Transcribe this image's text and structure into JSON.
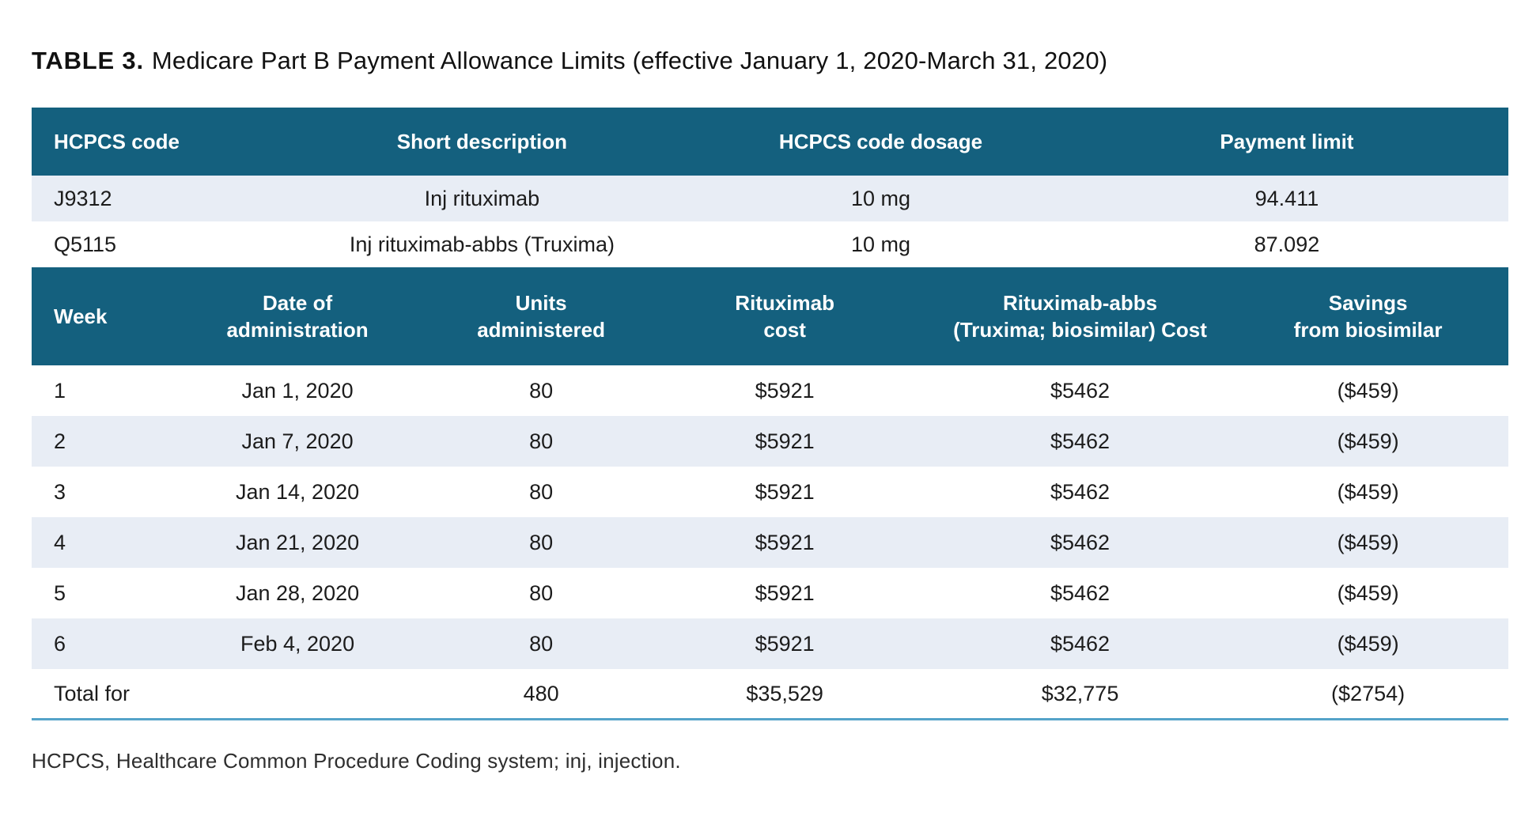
{
  "title": {
    "label": "TABLE 3.",
    "text": "Medicare Part B Payment Allowance Limits (effective January 1, 2020-March 31, 2020)"
  },
  "colors": {
    "header_bg": "#14607e",
    "row_alt_bg": "#e8edf5",
    "rule": "#55a3c9",
    "header_text": "#ffffff",
    "body_text": "#1c1c1c"
  },
  "hcpcs_table": {
    "columns": [
      "HCPCS code",
      "Short description",
      "HCPCS code dosage",
      "Payment limit"
    ],
    "rows": [
      [
        "J9312",
        "Inj rituximab",
        "10 mg",
        "94.411"
      ],
      [
        "Q5115",
        "Inj rituximab-abbs (Truxima)",
        "10 mg",
        "87.092"
      ]
    ]
  },
  "schedule_table": {
    "columns": [
      [
        "Week",
        ""
      ],
      [
        "Date of",
        "administration"
      ],
      [
        "Units",
        "administered"
      ],
      [
        "Rituximab",
        "cost"
      ],
      [
        "Rituximab-abbs",
        "(Truxima; biosimilar) Cost"
      ],
      [
        "Savings",
        "from biosimilar"
      ]
    ],
    "rows": [
      [
        "1",
        "Jan 1, 2020",
        "80",
        "$5921",
        "$5462",
        "($459)"
      ],
      [
        "2",
        "Jan 7, 2020",
        "80",
        "$5921",
        "$5462",
        "($459)"
      ],
      [
        "3",
        "Jan 14, 2020",
        "80",
        "$5921",
        "$5462",
        "($459)"
      ],
      [
        "4",
        "Jan 21, 2020",
        "80",
        "$5921",
        "$5462",
        "($459)"
      ],
      [
        "5",
        "Jan 28, 2020",
        "80",
        "$5921",
        "$5462",
        "($459)"
      ],
      [
        "6",
        "Feb 4, 2020",
        "80",
        "$5921",
        "$5462",
        "($459)"
      ]
    ],
    "total_row": [
      "Total for",
      "",
      "480",
      "$35,529",
      "$32,775",
      "($2754)"
    ]
  },
  "footnote": "HCPCS, Healthcare Common Procedure Coding system; inj, injection."
}
